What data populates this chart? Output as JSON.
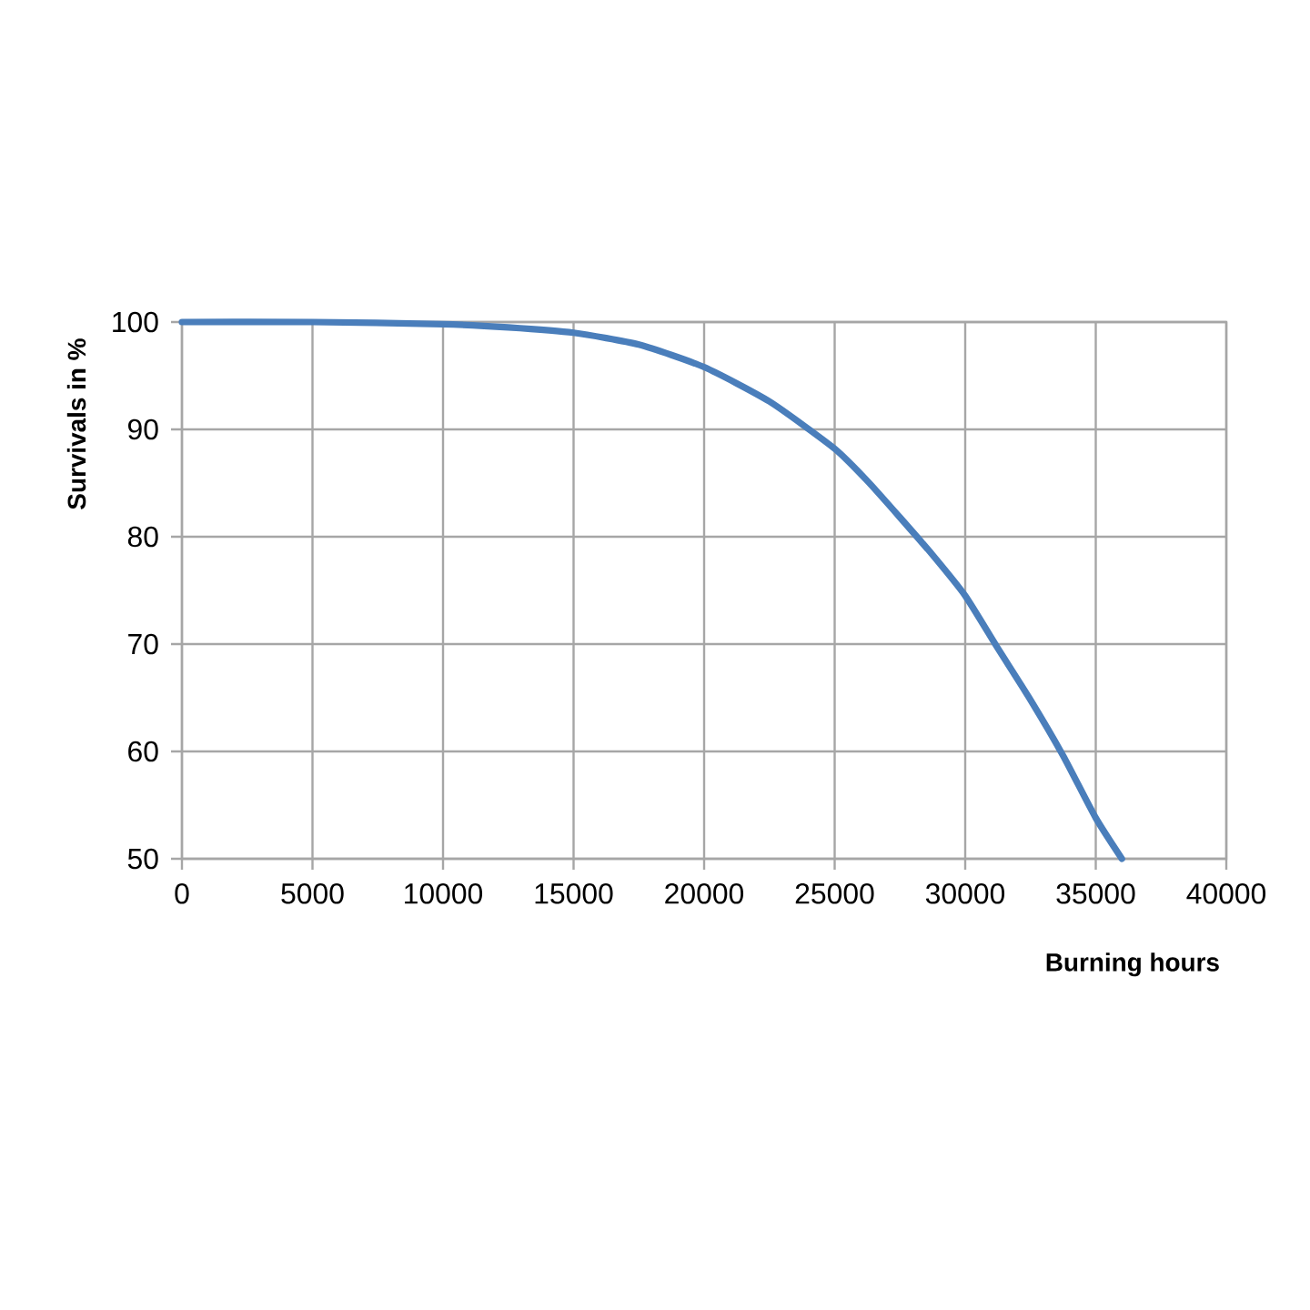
{
  "chart_data": {
    "type": "line",
    "xlabel": "Burning hours",
    "ylabel": "Survivals in %",
    "x": [
      0,
      5000,
      10000,
      12500,
      15000,
      17500,
      20000,
      22500,
      25000,
      26250,
      27500,
      28750,
      30000,
      31250,
      32500,
      33750,
      35000,
      36000
    ],
    "series": [
      {
        "color": "#4a7ebb",
        "values": [
          100,
          100,
          99.8,
          99.5,
          99.0,
          97.9,
          95.8,
          92.6,
          88.2,
          85.2,
          81.8,
          78.3,
          74.5,
          69.6,
          64.8,
          59.6,
          53.8,
          50
        ]
      }
    ],
    "xlim": [
      0,
      40000
    ],
    "ylim": [
      50,
      100
    ],
    "xticks": [
      0,
      5000,
      10000,
      15000,
      20000,
      25000,
      30000,
      35000,
      40000
    ],
    "yticks": [
      50,
      60,
      70,
      80,
      90,
      100
    ],
    "grid": true,
    "marker": "none",
    "line_style": "solid"
  }
}
